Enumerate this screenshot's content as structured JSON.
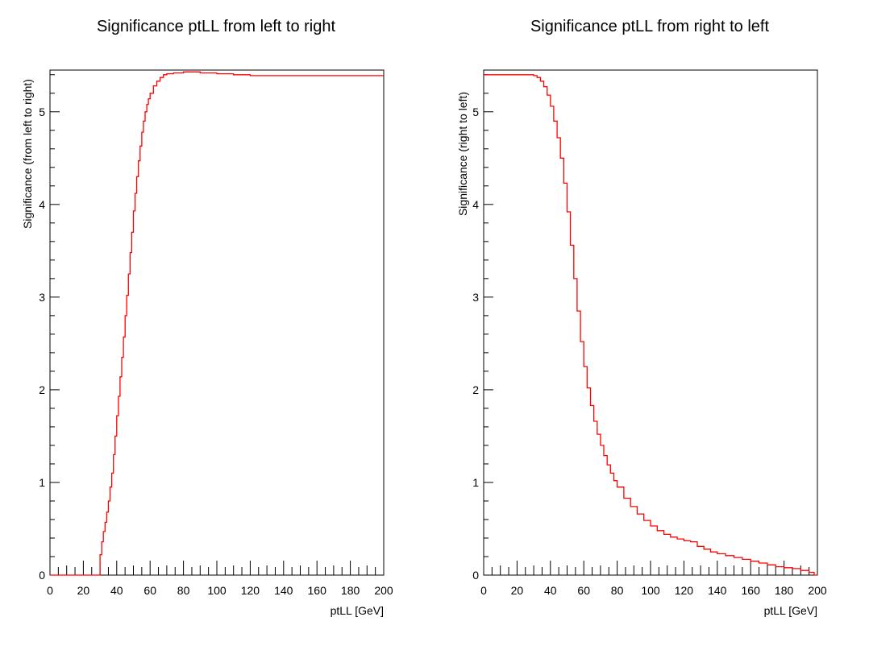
{
  "chart_data": [
    {
      "type": "line",
      "title": "Significance ptLL from left to right",
      "xlabel": "ptLL [GeV]",
      "ylabel": "Significance (from left to right)",
      "xlim": [
        0,
        200
      ],
      "ylim": [
        0,
        5.45
      ],
      "xticks": [
        0,
        20,
        40,
        60,
        80,
        100,
        120,
        140,
        160,
        180,
        200
      ],
      "yticks": [
        0,
        1,
        2,
        3,
        4,
        5
      ],
      "grid": false,
      "step": true,
      "color": "#ff0000",
      "series": [
        {
          "x": [
            0,
            30,
            31,
            32,
            33,
            34,
            35,
            36,
            37,
            38,
            39,
            40,
            41,
            42,
            43,
            44,
            45,
            46,
            47,
            48,
            49,
            50,
            51,
            52,
            53,
            54,
            55,
            56,
            57,
            58,
            59,
            60,
            62,
            64,
            66,
            68,
            70,
            74,
            80,
            90,
            100,
            110,
            120,
            140,
            160,
            180,
            200
          ],
          "y": [
            0,
            0.22,
            0.36,
            0.47,
            0.57,
            0.68,
            0.8,
            0.95,
            1.1,
            1.3,
            1.5,
            1.72,
            1.93,
            2.14,
            2.35,
            2.57,
            2.8,
            3.02,
            3.25,
            3.48,
            3.7,
            3.93,
            4.12,
            4.3,
            4.47,
            4.63,
            4.78,
            4.9,
            5.0,
            5.08,
            5.14,
            5.2,
            5.28,
            5.33,
            5.37,
            5.4,
            5.41,
            5.42,
            5.43,
            5.42,
            5.41,
            5.4,
            5.39,
            5.39,
            5.39,
            5.39,
            5.39
          ]
        }
      ]
    },
    {
      "type": "line",
      "title": "Significance ptLL from right to left",
      "xlabel": "ptLL [GeV]",
      "ylabel": "Significance (right to left)",
      "xlim": [
        0,
        200
      ],
      "ylim": [
        0,
        5.45
      ],
      "xticks": [
        0,
        20,
        40,
        60,
        80,
        100,
        120,
        140,
        160,
        180,
        200
      ],
      "yticks": [
        0,
        1,
        2,
        3,
        4,
        5
      ],
      "grid": false,
      "step": true,
      "color": "#ff0000",
      "series": [
        {
          "x": [
            0,
            28,
            30,
            32,
            34,
            36,
            38,
            40,
            42,
            44,
            46,
            48,
            50,
            52,
            54,
            56,
            58,
            60,
            62,
            64,
            66,
            68,
            70,
            72,
            74,
            76,
            78,
            80,
            84,
            88,
            92,
            96,
            100,
            104,
            108,
            112,
            116,
            120,
            124,
            128,
            132,
            136,
            140,
            145,
            150,
            155,
            160,
            165,
            170,
            175,
            180,
            185,
            190,
            195,
            198
          ],
          "y": [
            5.4,
            5.4,
            5.39,
            5.37,
            5.33,
            5.27,
            5.18,
            5.06,
            4.9,
            4.72,
            4.5,
            4.23,
            3.92,
            3.56,
            3.2,
            2.85,
            2.52,
            2.25,
            2.02,
            1.83,
            1.66,
            1.52,
            1.4,
            1.29,
            1.19,
            1.1,
            1.02,
            0.95,
            0.83,
            0.74,
            0.66,
            0.59,
            0.53,
            0.48,
            0.44,
            0.41,
            0.39,
            0.37,
            0.36,
            0.31,
            0.28,
            0.25,
            0.23,
            0.21,
            0.19,
            0.17,
            0.15,
            0.13,
            0.11,
            0.09,
            0.08,
            0.07,
            0.05,
            0.03,
            0.0
          ]
        }
      ]
    }
  ]
}
